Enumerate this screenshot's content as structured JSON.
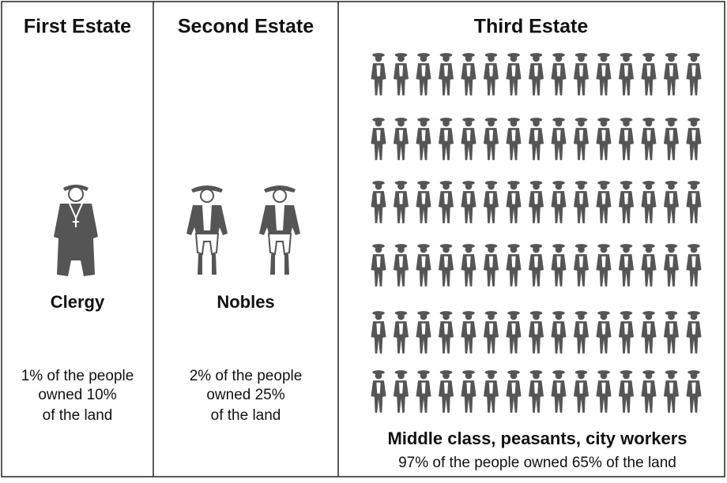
{
  "columns": [
    {
      "title": "First Estate",
      "label": "Clergy",
      "description": [
        "1% of the people",
        "owned 10%",
        "of the land"
      ]
    },
    {
      "title": "Second Estate",
      "label": "Nobles",
      "description": [
        "2% of the people",
        "owned 25%",
        "of the land"
      ]
    },
    {
      "title": "Third Estate",
      "label": "Middle class, peasants, city workers",
      "description": [
        "97% of the people owned 65% of the land"
      ]
    }
  ]
}
